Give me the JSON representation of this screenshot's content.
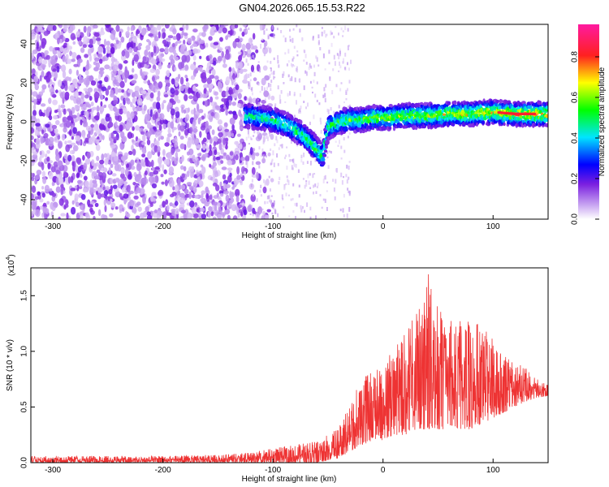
{
  "title": "GN04.2026.065.15.53.R22",
  "chart_data": [
    {
      "type": "heatmap",
      "xlabel": "Height of straight line (km)",
      "ylabel": "Frequency (Hz)",
      "xlim": [
        -320,
        150
      ],
      "ylim": [
        -50,
        50
      ],
      "xticks": [
        -300,
        -200,
        -100,
        0,
        100
      ],
      "yticks": [
        -40,
        -20,
        0,
        20,
        40
      ],
      "colorbar": {
        "label": "Normalized spectral amplitude",
        "range": [
          0,
          0.96
        ],
        "ticks": [
          "0.0",
          "0.2",
          "0.4",
          "0.6",
          "0.8"
        ],
        "tick_values": [
          0,
          0.2,
          0.4,
          0.6,
          0.8
        ],
        "colors": [
          "#ffffff",
          "#8a2be2",
          "#0000ff",
          "#00ffff",
          "#00ff00",
          "#ffff00",
          "#ff0000",
          "#ff00ff"
        ]
      },
      "noise_region_x": [
        -320,
        -125
      ],
      "ridge": {
        "x": [
          -125,
          -110,
          -100,
          -90,
          -80,
          -70,
          -60,
          -55,
          -50,
          -40,
          -30,
          -20,
          -10,
          0,
          20,
          40,
          60,
          80,
          100,
          120,
          150
        ],
        "y": [
          3,
          2,
          1,
          -1,
          -4,
          -8,
          -14,
          -18,
          -3,
          0,
          1,
          1,
          2,
          2,
          3,
          3,
          4,
          4,
          5,
          4,
          4
        ]
      }
    },
    {
      "type": "line",
      "xlabel": "Height of straight line (km)",
      "ylabel": "SNR (10 * v/v)",
      "multiplier": "(x10",
      "multiplier_exp": "4",
      "multiplier_close": ")",
      "xlim": [
        -320,
        150
      ],
      "ylim": [
        0,
        1.75
      ],
      "xticks": [
        -300,
        -200,
        -100,
        0,
        100
      ],
      "yticks": [
        "0.0",
        "0.5",
        "1.0",
        "1.5"
      ],
      "ytick_values": [
        0,
        0.5,
        1.0,
        1.5
      ],
      "series": [
        {
          "color": "#ee3333",
          "x": [
            -320,
            -250,
            -200,
            -150,
            -120,
            -100,
            -80,
            -60,
            -50,
            -40,
            -30,
            -20,
            -10,
            0,
            10,
            20,
            30,
            40,
            50,
            60,
            70,
            80,
            90,
            100,
            110,
            120,
            130,
            140,
            150
          ],
          "envelope_max": [
            0.06,
            0.06,
            0.06,
            0.07,
            0.09,
            0.13,
            0.16,
            0.2,
            0.25,
            0.32,
            0.55,
            0.75,
            0.82,
            0.85,
            1.05,
            1.2,
            1.35,
            1.75,
            1.4,
            1.3,
            1.3,
            1.3,
            1.25,
            1.1,
            1.0,
            0.9,
            0.85,
            0.75,
            0.7
          ],
          "envelope_min": [
            0.0,
            0.0,
            0.0,
            0.0,
            0.0,
            0.0,
            0.0,
            0.0,
            0.02,
            0.04,
            0.1,
            0.15,
            0.2,
            0.2,
            0.25,
            0.25,
            0.3,
            0.3,
            0.3,
            0.3,
            0.3,
            0.3,
            0.35,
            0.4,
            0.45,
            0.5,
            0.55,
            0.58,
            0.6
          ]
        }
      ]
    }
  ]
}
